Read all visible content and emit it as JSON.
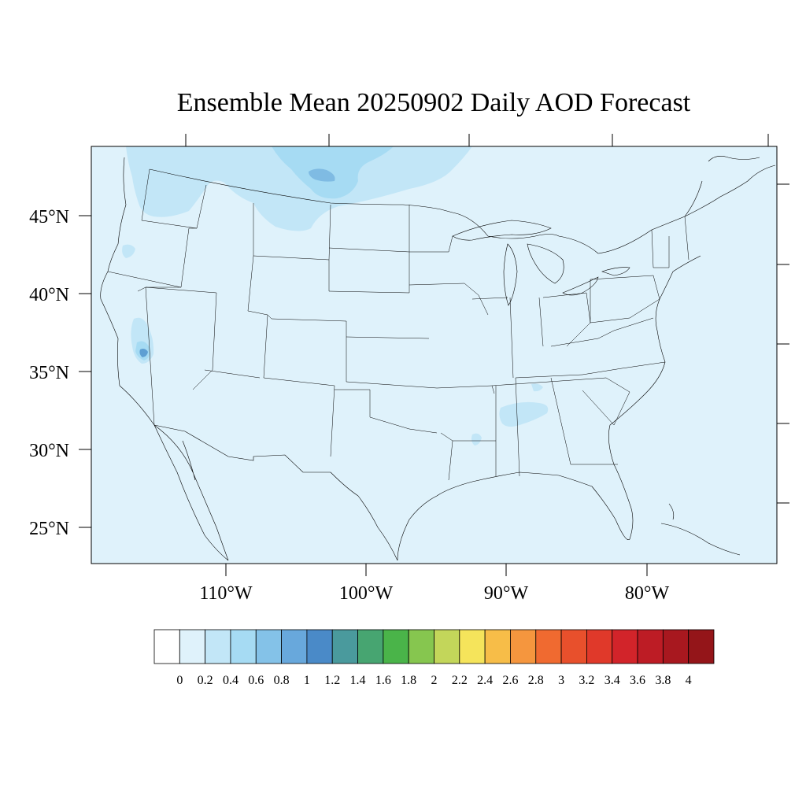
{
  "title": "Ensemble Mean 20250902 Daily AOD Forecast",
  "colors": {
    "background_level": "#dff2fb",
    "plume_light": "#c2e6f7",
    "plume_mid": "#a6dbf3",
    "plume_dark": "#7fbbe3",
    "hotspot": "#5e9fd3",
    "border": "#000000"
  },
  "axes": {
    "lat_labels": [
      "45°N",
      "40°N",
      "35°N",
      "30°N",
      "25°N"
    ],
    "lon_labels": [
      "110°W",
      "100°W",
      "90°W",
      "80°W"
    ]
  },
  "colorbar": {
    "colors": [
      "#ffffff",
      "#dff2fb",
      "#c2e6f7",
      "#a6dbf3",
      "#84c2e8",
      "#68a8dc",
      "#4a8ac8",
      "#4a9a9d",
      "#47a571",
      "#4ab449",
      "#86c64f",
      "#c3d65a",
      "#f5e45b",
      "#f7bd48",
      "#f5963e",
      "#f06a30",
      "#e8502c",
      "#e0392a",
      "#d2242a",
      "#bd1c25",
      "#a8181f",
      "#941519"
    ],
    "labels": [
      "0",
      "0.2",
      "0.4",
      "0.6",
      "0.8",
      "1",
      "1.2",
      "1.4",
      "1.6",
      "1.8",
      "2",
      "2.2",
      "2.4",
      "2.6",
      "2.8",
      "3",
      "3.2",
      "3.4",
      "3.6",
      "3.8",
      "4"
    ]
  }
}
